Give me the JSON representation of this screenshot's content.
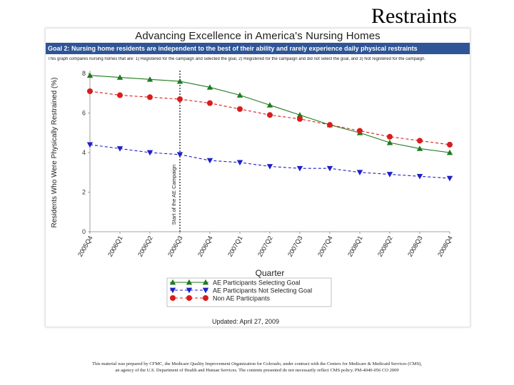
{
  "slide": {
    "title": "Restraints",
    "footer_line1": "This material was prepared by CFMC, the Medicare Quality Improvement Organization for Colorado, under contract with the Centers for Medicare & Medicaid Services (CMS),",
    "footer_line2": "an agency of the U.S. Department of Health and Human Services. The contents presented do not necessarily reflect CMS policy. PM-4040-056 CO 2009"
  },
  "chart_panel": {
    "title": "Advancing Excellence in America's Nursing Homes",
    "goal": "Goal 2: Nursing home residents are independent to the best of their ability and rarely experience daily physical restraints",
    "description": "This graph compares nursing homes that are: 1) Registered for the campaign and selected the goal, 2) Registered for the campaign and did not select the goal, and 3) Not registered for the campaign.",
    "updated": "Updated: April 27, 2009"
  },
  "chart_data": {
    "type": "line",
    "ylabel": "Residents Who Were Physically Restrained (%)",
    "xlabel": "Quarter",
    "ylim": [
      0,
      8
    ],
    "yticks": [
      0,
      2,
      4,
      6,
      8
    ],
    "categories": [
      "2005Q4",
      "2006Q1",
      "2006Q2",
      "2006Q3",
      "2006Q4",
      "2007Q1",
      "2007Q2",
      "2007Q3",
      "2007Q4",
      "2008Q1",
      "2008Q2",
      "2008Q3",
      "2008Q4"
    ],
    "annotation": {
      "label": "Start of the AE Campaign",
      "at": "2006Q3"
    },
    "legend_position": "bottom",
    "series": [
      {
        "name": "AE Participants Selecting Goal",
        "color": "#1e7b1e",
        "marker": "triangle-up",
        "dash": "solid",
        "values": [
          7.9,
          7.8,
          7.7,
          7.6,
          7.3,
          6.9,
          6.4,
          5.9,
          5.4,
          5.0,
          4.5,
          4.2,
          4.0
        ]
      },
      {
        "name": "AE Participants Not Selecting Goal",
        "color": "#1f1fc8",
        "marker": "triangle-down",
        "dash": "dash",
        "values": [
          4.4,
          4.2,
          4.0,
          3.9,
          3.6,
          3.5,
          3.3,
          3.2,
          3.2,
          3.0,
          2.9,
          2.8,
          2.7
        ]
      },
      {
        "name": "Non AE Participants",
        "color": "#d91c1c",
        "marker": "circle",
        "dash": "dash",
        "values": [
          7.1,
          6.9,
          6.8,
          6.7,
          6.5,
          6.2,
          5.9,
          5.7,
          5.4,
          5.1,
          4.8,
          4.6,
          4.4
        ]
      }
    ]
  }
}
